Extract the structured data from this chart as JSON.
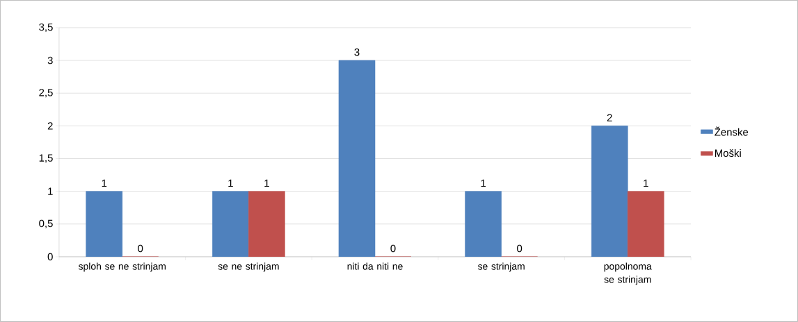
{
  "chart_data": {
    "type": "bar",
    "categories": [
      "sploh se ne strinjam",
      "se ne strinjam",
      "niti da niti ne",
      "se strinjam",
      "popolnoma se strinjam"
    ],
    "series": [
      {
        "name": "Ženske",
        "color": "#4f81bd",
        "values": [
          1,
          1,
          3,
          1,
          2
        ]
      },
      {
        "name": "Moški",
        "color": "#c0504d",
        "values": [
          0,
          1,
          0,
          0,
          1
        ]
      }
    ],
    "ylim": [
      0,
      3.5
    ],
    "yticks": [
      0,
      {
        "value": 0.5,
        "label": "0,5"
      },
      1,
      {
        "value": 1.5,
        "label": "1,5"
      },
      2,
      {
        "value": 2.5,
        "label": "2,5"
      },
      3,
      {
        "value": 3.5,
        "label": "3,5"
      }
    ],
    "grid": "y",
    "legend": "right",
    "data_labels": true
  }
}
